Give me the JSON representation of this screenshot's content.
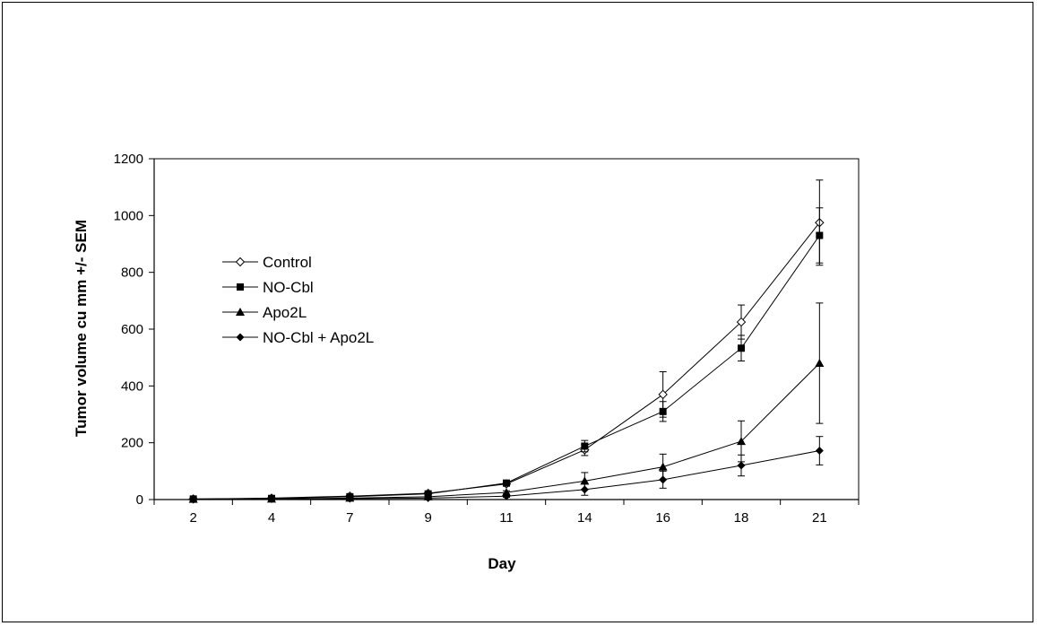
{
  "chart_data": {
    "type": "line",
    "xlabel": "Day",
    "ylabel": "Tumor volume cu mm +/- SEM",
    "categories": [
      "2",
      "4",
      "7",
      "9",
      "11",
      "14",
      "16",
      "18",
      "21"
    ],
    "ylim": [
      0,
      1200
    ],
    "yticks": [
      0,
      200,
      400,
      600,
      800,
      1000,
      1200
    ],
    "legend_position": "upper-left",
    "series": [
      {
        "name": "Control",
        "marker": "diamond-open",
        "values": [
          2,
          5,
          12,
          22,
          55,
          175,
          370,
          625,
          975
        ],
        "errors": [
          1,
          2,
          3,
          4,
          8,
          20,
          80,
          60,
          150
        ]
      },
      {
        "name": "NO-Cbl",
        "marker": "square",
        "values": [
          2,
          4,
          10,
          20,
          58,
          188,
          310,
          533,
          930
        ],
        "errors": [
          1,
          2,
          3,
          4,
          6,
          20,
          35,
          45,
          97
        ]
      },
      {
        "name": "Apo2L",
        "marker": "triangle",
        "values": [
          1,
          2,
          5,
          10,
          25,
          65,
          115,
          205,
          480
        ],
        "errors": [
          1,
          1,
          2,
          3,
          6,
          30,
          45,
          72,
          212
        ]
      },
      {
        "name": "NO-Cbl + Apo2L",
        "marker": "diamond",
        "values": [
          1,
          2,
          3,
          5,
          12,
          35,
          70,
          120,
          172
        ],
        "errors": [
          1,
          1,
          1,
          2,
          4,
          20,
          30,
          37,
          50
        ]
      }
    ]
  }
}
